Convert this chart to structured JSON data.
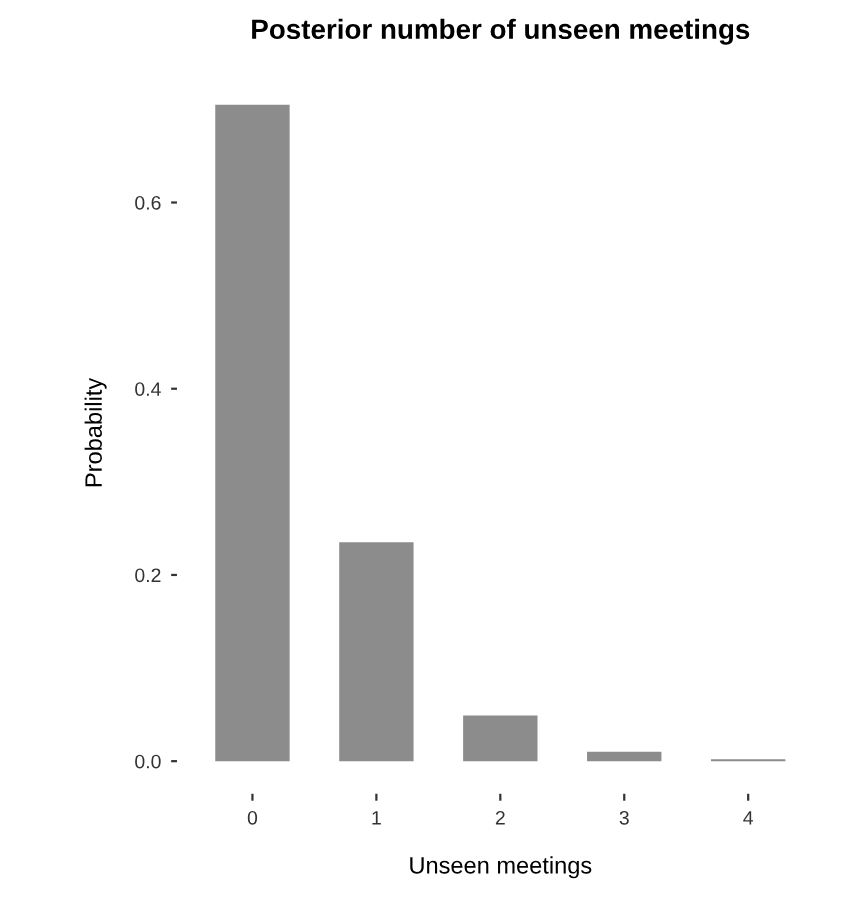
{
  "chart_data": {
    "type": "bar",
    "title": "Posterior number of unseen meetings",
    "xlabel": "Unseen meetings",
    "ylabel": "Probability",
    "categories": [
      "0",
      "1",
      "2",
      "3",
      "4"
    ],
    "values": [
      0.705,
      0.235,
      0.049,
      0.01,
      0.002
    ],
    "color": "#8c8c8c",
    "ylim": [
      -0.035,
      0.74
    ],
    "yticks": [
      {
        "value": 0,
        "label": "0.0"
      },
      {
        "value": 0.2,
        "label": "0.2"
      },
      {
        "value": 0.4,
        "label": "0.4"
      },
      {
        "value": 0.6,
        "label": "0.6"
      }
    ],
    "grid": false
  }
}
